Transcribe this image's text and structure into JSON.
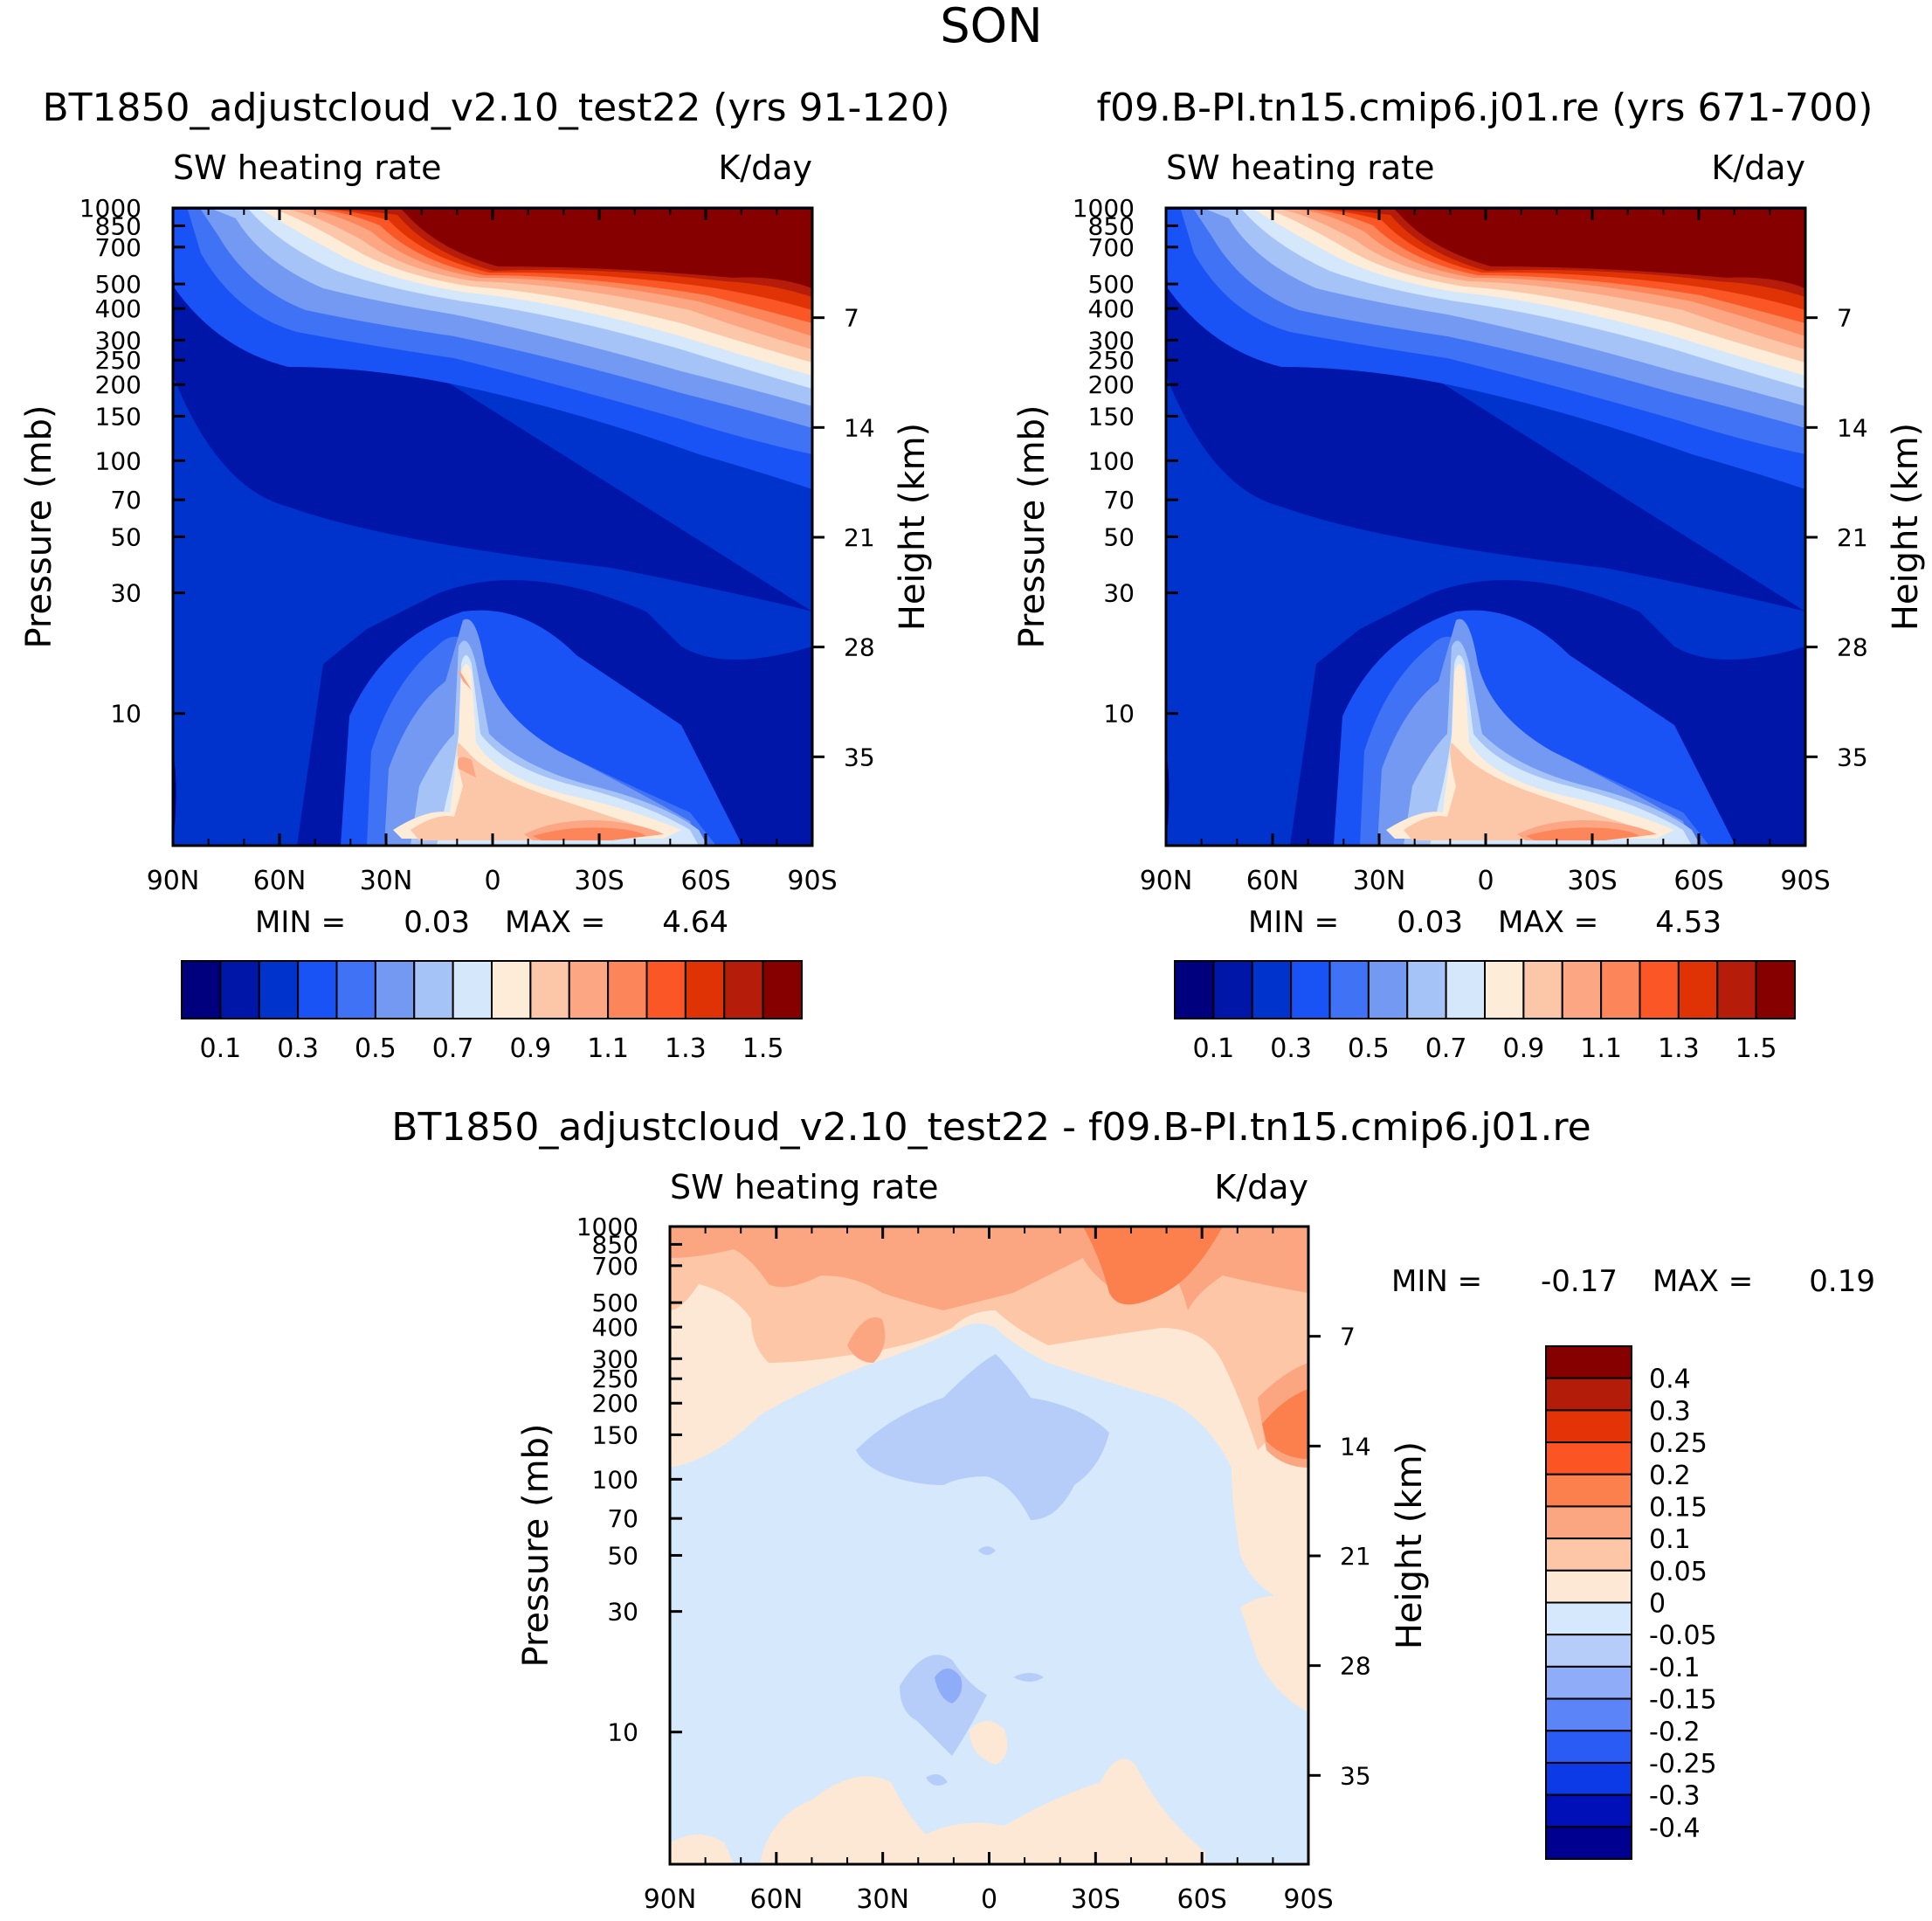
{
  "figure_title": "SON",
  "colors": {
    "seq": [
      "#00007f",
      "#0016a8",
      "#0033cc",
      "#1a53f5",
      "#4072f5",
      "#7399f2",
      "#a6c3f7",
      "#d5e7fa",
      "#fcecd8",
      "#fcc7a8",
      "#fca683",
      "#fc8559",
      "#fa5626",
      "#e03305",
      "#b51c0a",
      "#870000"
    ],
    "diff": [
      "#000090",
      "#0010b8",
      "#0b3ae6",
      "#2a5bf5",
      "#5a84f7",
      "#8eacf8",
      "#b6cdf9",
      "#d6e8fb",
      "#fde8d5",
      "#fdc6a6",
      "#fca681",
      "#fc7f4e",
      "#fc5422",
      "#e33307",
      "#b41c0a",
      "#870000"
    ]
  },
  "chart_data": [
    {
      "type": "heatmap",
      "subtype": "filled-contour",
      "title": "BT1850_adjustcloud_v2.10_test22 (yrs 91-120)",
      "left_label": "SW heating rate",
      "right_label": "K/day",
      "ylabel": "Pressure (mb)",
      "ylabel_right": "Height (km)",
      "x_ticks": [
        "90N",
        "60N",
        "30N",
        "0",
        "30S",
        "60S",
        "90S"
      ],
      "pressure_ticks": [
        "10",
        "30",
        "50",
        "70",
        "100",
        "150",
        "200",
        "250",
        "300",
        "400",
        "500",
        "700",
        "850",
        "1000"
      ],
      "height_ticks": [
        "35",
        "28",
        "21",
        "14",
        "7"
      ],
      "min_label": "MIN =",
      "min_value": "0.03",
      "max_label": "MAX =",
      "max_value": "4.64",
      "colorbar_labels": [
        "0.1",
        "0.3",
        "0.5",
        "0.7",
        "0.9",
        "1.1",
        "1.3",
        "1.5"
      ],
      "ylim_mb": [
        1000,
        3
      ]
    },
    {
      "type": "heatmap",
      "subtype": "filled-contour",
      "title": "f09.B-PI.tn15.cmip6.j01.re (yrs 671-700)",
      "left_label": "SW heating rate",
      "right_label": "K/day",
      "ylabel": "Pressure (mb)",
      "ylabel_right": "Height (km)",
      "x_ticks": [
        "90N",
        "60N",
        "30N",
        "0",
        "30S",
        "60S",
        "90S"
      ],
      "pressure_ticks": [
        "10",
        "30",
        "50",
        "70",
        "100",
        "150",
        "200",
        "250",
        "300",
        "400",
        "500",
        "700",
        "850",
        "1000"
      ],
      "height_ticks": [
        "35",
        "28",
        "21",
        "14",
        "7"
      ],
      "min_label": "MIN =",
      "min_value": "0.03",
      "max_label": "MAX =",
      "max_value": "4.53",
      "colorbar_labels": [
        "0.1",
        "0.3",
        "0.5",
        "0.7",
        "0.9",
        "1.1",
        "1.3",
        "1.5"
      ],
      "ylim_mb": [
        1000,
        3
      ]
    },
    {
      "type": "heatmap",
      "subtype": "filled-contour-difference",
      "title": "BT1850_adjustcloud_v2.10_test22 - f09.B-PI.tn15.cmip6.j01.re",
      "left_label": "SW heating rate",
      "right_label": "K/day",
      "ylabel": "Pressure (mb)",
      "ylabel_right": "Height (km)",
      "x_ticks": [
        "90N",
        "60N",
        "30N",
        "0",
        "30S",
        "60S",
        "90S"
      ],
      "pressure_ticks": [
        "10",
        "30",
        "50",
        "70",
        "100",
        "150",
        "200",
        "250",
        "300",
        "400",
        "500",
        "700",
        "850",
        "1000"
      ],
      "height_ticks": [
        "35",
        "28",
        "21",
        "14",
        "7"
      ],
      "min_label": "MIN =",
      "min_value": "-0.17",
      "max_label": "MAX =",
      "max_value": "0.19",
      "colorbar_labels": [
        "0.4",
        "0.3",
        "0.25",
        "0.2",
        "0.15",
        "0.1",
        "0.05",
        "0",
        "-0.05",
        "-0.1",
        "-0.15",
        "-0.2",
        "-0.25",
        "-0.3",
        "-0.4"
      ],
      "ylim_mb": [
        1000,
        3
      ]
    }
  ]
}
